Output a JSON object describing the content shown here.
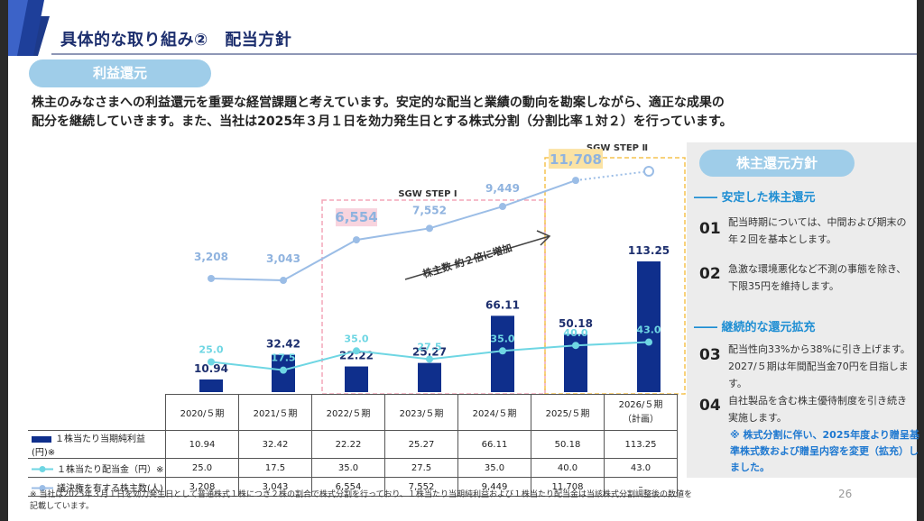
{
  "title": "具体的な取り組み②　配当方針",
  "section_pill": "利益還元",
  "intro": [
    "株主のみなさまへの利益還元を重要な経営課題と考えています。安定的な配当と業績の動向を勘案しながら、適正な成果の",
    "配分を継続していきます。また、当社は2025年３月１日を効力発生日とする株式分割（分割比率１対２）を行っています。"
  ],
  "chart_data": {
    "type": "bar",
    "categories": [
      "2020/５期",
      "2021/５期",
      "2022/５期",
      "2023/５期",
      "2024/５期",
      "2025/５期",
      "2026/５期"
    ],
    "series": [
      {
        "name": "１株当たり当期純利益(円)",
        "kind": "bar",
        "values": [
          10.94,
          32.42,
          22.22,
          25.27,
          66.11,
          50.18,
          113.25
        ],
        "labels": [
          "10.94",
          "32.42",
          "22.22",
          "25.27",
          "66.11",
          "50.18",
          "113.25"
        ]
      },
      {
        "name": "１株当たり配当金（円）",
        "kind": "line",
        "values": [
          25.0,
          17.5,
          35.0,
          27.5,
          35.0,
          40.0,
          43.0
        ],
        "labels": [
          "25.0",
          "17.5",
          "35.0",
          "27.5",
          "35.0",
          "40.0",
          "43.0"
        ]
      },
      {
        "name": "議決権を有する株主数(人)",
        "kind": "line",
        "values": [
          3208,
          3043,
          6554,
          7552,
          9449,
          11708,
          null
        ],
        "labels": [
          "3,208",
          "3,043",
          "6,554",
          "7,552",
          "9,449",
          "11,708",
          ""
        ]
      }
    ],
    "annotations": {
      "step1": "SGW STEP Ⅰ",
      "step2": "SGW STEP Ⅱ",
      "arrow_text": "株主数 約２倍に増加"
    },
    "colors": {
      "bar": "#0f2f8c",
      "dividend": "#6ed6e3",
      "holders": "#9bbde6",
      "step1": "#f3a6b8",
      "step2": "#f5c451"
    }
  },
  "table": {
    "last_header_sub": "（計画）",
    "rows": [
      {
        "label": "１株当たり当期純利益(円)※",
        "values": [
          "10.94",
          "32.42",
          "22.22",
          "25.27",
          "66.11",
          "50.18",
          "113.25"
        ]
      },
      {
        "label": "１株当たり配当金（円）※",
        "values": [
          "25.0",
          "17.5",
          "35.0",
          "27.5",
          "35.0",
          "40.0",
          "43.0"
        ]
      },
      {
        "label": "議決権を有する株主数(人)",
        "values": [
          "3,208",
          "3,043",
          "6,554",
          "7,552",
          "9,449",
          "11,708",
          "–"
        ]
      }
    ]
  },
  "policy": {
    "pill": "株主還元方針",
    "sections": [
      {
        "heading": "―― 安定した株主還元",
        "items": [
          {
            "num": "01",
            "text": "配当時期については、中間および期末の年２回を基本とします。"
          },
          {
            "num": "02",
            "text": "急激な環境悪化など不測の事態を除き、下限35円を維持します。"
          }
        ]
      },
      {
        "heading": "―― 継続的な還元拡充",
        "items": [
          {
            "num": "03",
            "text": "配当性向33%から38%に引き上げます。2027/５期は年間配当金70円を目指します。"
          },
          {
            "num": "04",
            "text": "自社製品を含む株主優待制度を引き続き実施します。"
          }
        ]
      }
    ],
    "note": "※ 株式分割に伴い、2025年度より贈呈基準株式数および贈呈内容を変更（拡充）しました。"
  },
  "footnote": "※ 当社は2025年３月１日を効力発生日として普通株式１株につき２株の割合で株式分割を行っており、１株当たり当期純利益および１株当たり配当金は当該株式分割調整後の数値を記載しています。",
  "page_number": "26"
}
